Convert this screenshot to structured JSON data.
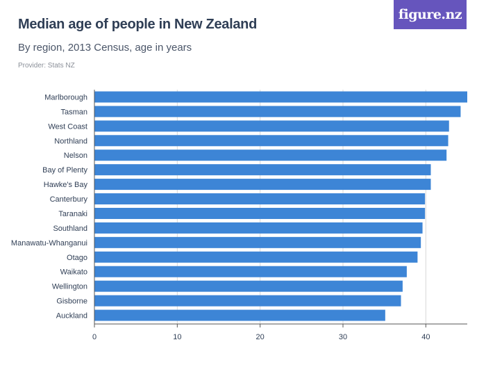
{
  "header": {
    "title": "Median age of people in New Zealand",
    "subtitle": "By region, 2013 Census, age in years",
    "provider": "Provider: Stats NZ"
  },
  "brand": {
    "logo_text": "figure.nz",
    "color": "#6655bd"
  },
  "colors": {
    "bar": "#3d85d6",
    "grid": "#d8d8d8",
    "axis": "#555555",
    "label": "#2f3e55"
  },
  "chart_data": {
    "type": "bar",
    "orientation": "horizontal",
    "title": "Median age of people in New Zealand",
    "subtitle": "By region, 2013 Census, age in years",
    "xlabel": "",
    "ylabel": "",
    "xlim": [
      0,
      45
    ],
    "xticks": [
      0,
      10,
      20,
      30,
      40
    ],
    "grid": true,
    "categories": [
      "Marlborough",
      "Tasman",
      "West Coast",
      "Northland",
      "Nelson",
      "Bay of Plenty",
      "Hawke's Bay",
      "Canterbury",
      "Taranaki",
      "Southland",
      "Manawatu-Whanganui",
      "Otago",
      "Waikato",
      "Wellington",
      "Gisborne",
      "Auckland"
    ],
    "values": [
      45.0,
      44.2,
      42.8,
      42.7,
      42.5,
      40.6,
      40.6,
      39.9,
      39.9,
      39.6,
      39.4,
      39.0,
      37.7,
      37.2,
      37.0,
      35.1
    ]
  }
}
